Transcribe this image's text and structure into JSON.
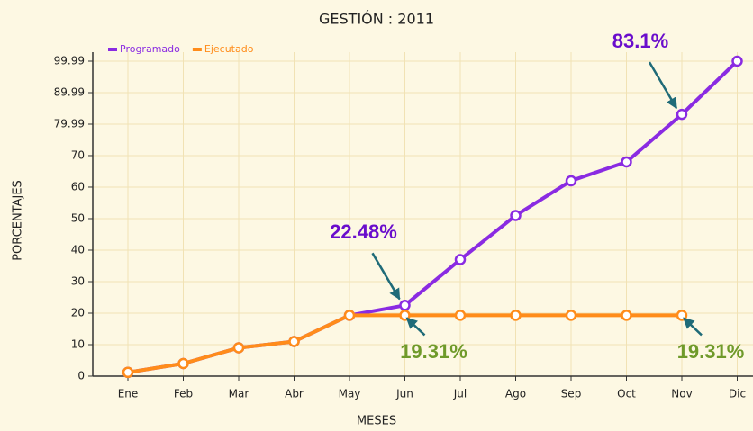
{
  "chart_data": {
    "type": "line",
    "title": "GESTIÓN : 2011",
    "x_label": "MESES",
    "y_label": "PORCENTAJES",
    "categories": [
      "Ene",
      "Feb",
      "Mar",
      "Abr",
      "May",
      "Jun",
      "Jul",
      "Ago",
      "Sep",
      "Oct",
      "Nov",
      "Dic"
    ],
    "series": [
      {
        "name": "Programado",
        "color": "#8a2be2",
        "label_color": "#6a0dcc",
        "values": [
          1.2,
          4,
          9,
          11,
          19.31,
          22.48,
          37,
          51,
          62,
          68,
          83.1,
          99.99
        ],
        "value_labels": [
          null,
          null,
          null,
          null,
          null,
          "22.48%",
          null,
          null,
          null,
          null,
          "83.1%",
          null
        ]
      },
      {
        "name": "Ejecutado",
        "color": "#ff8c1a",
        "label_color": "#6f9a2a",
        "values": [
          1.2,
          4,
          9,
          11,
          19.31,
          19.31,
          19.31,
          19.31,
          19.31,
          19.31,
          19.31,
          null
        ],
        "value_labels": [
          null,
          null,
          null,
          null,
          null,
          "19.31%",
          null,
          null,
          null,
          null,
          "19.31%",
          null
        ]
      }
    ],
    "ylim": [
      0,
      99.99
    ],
    "yticks": [
      0,
      10,
      20,
      30,
      40,
      50,
      60,
      70,
      79.99,
      89.99,
      99.99
    ],
    "grid": true,
    "legend": "top-left"
  }
}
